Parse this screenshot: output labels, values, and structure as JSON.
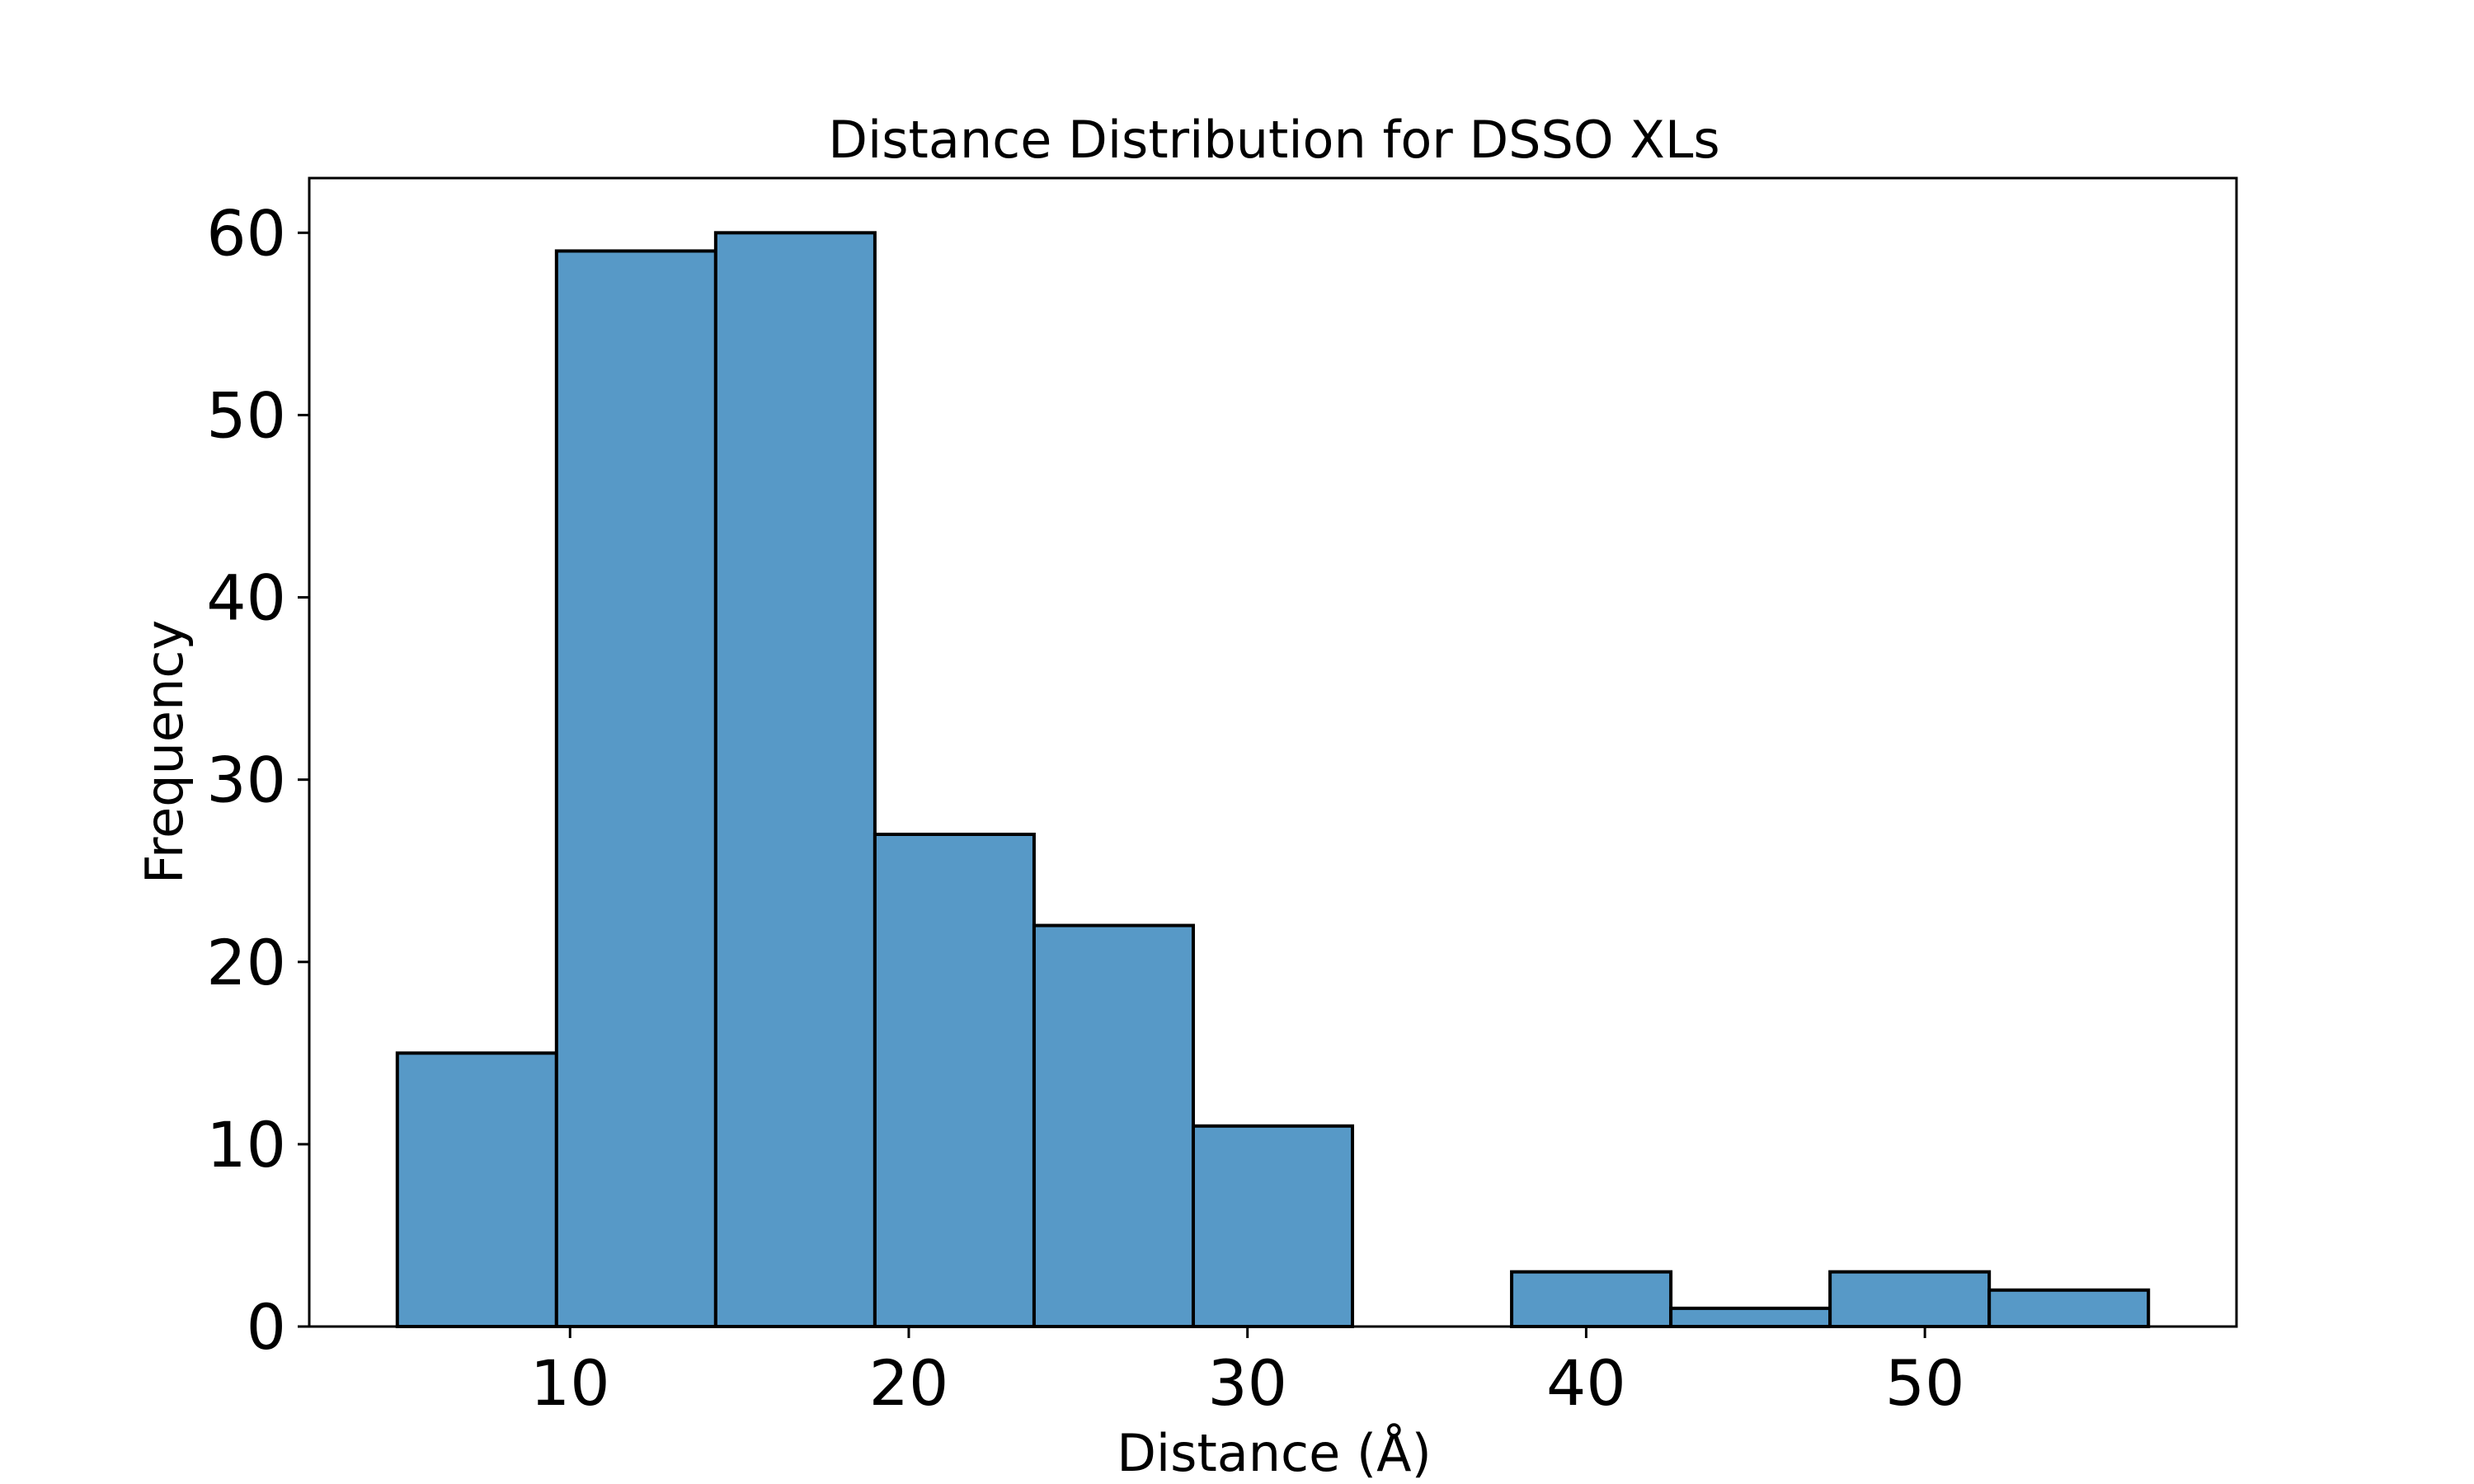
{
  "chart_data": {
    "type": "bar",
    "title": "Distance Distribution for DSSO XLs",
    "xlabel": "Distance (Å)",
    "ylabel": "Frequency",
    "bins": [
      {
        "x0": 4.9,
        "x1": 9.6,
        "count": 15
      },
      {
        "x0": 9.6,
        "x1": 14.3,
        "count": 59
      },
      {
        "x0": 14.3,
        "x1": 19.0,
        "count": 60
      },
      {
        "x0": 19.0,
        "x1": 23.7,
        "count": 27
      },
      {
        "x0": 23.7,
        "x1": 28.4,
        "count": 22
      },
      {
        "x0": 28.4,
        "x1": 33.1,
        "count": 11
      },
      {
        "x0": 33.1,
        "x1": 37.8,
        "count": 0
      },
      {
        "x0": 37.8,
        "x1": 42.5,
        "count": 3
      },
      {
        "x0": 42.5,
        "x1": 47.2,
        "count": 1
      },
      {
        "x0": 47.2,
        "x1": 51.9,
        "count": 3
      },
      {
        "x0": 51.9,
        "x1": 56.6,
        "count": 2
      }
    ],
    "xlim": [
      2.3,
      59.2
    ],
    "ylim": [
      0,
      63
    ],
    "xticks": [
      10,
      20,
      30,
      40,
      50
    ],
    "yticks": [
      0,
      10,
      20,
      30,
      40,
      50,
      60
    ],
    "grid": false,
    "bar_color": "#5799c7",
    "edge_color": "#000000"
  }
}
